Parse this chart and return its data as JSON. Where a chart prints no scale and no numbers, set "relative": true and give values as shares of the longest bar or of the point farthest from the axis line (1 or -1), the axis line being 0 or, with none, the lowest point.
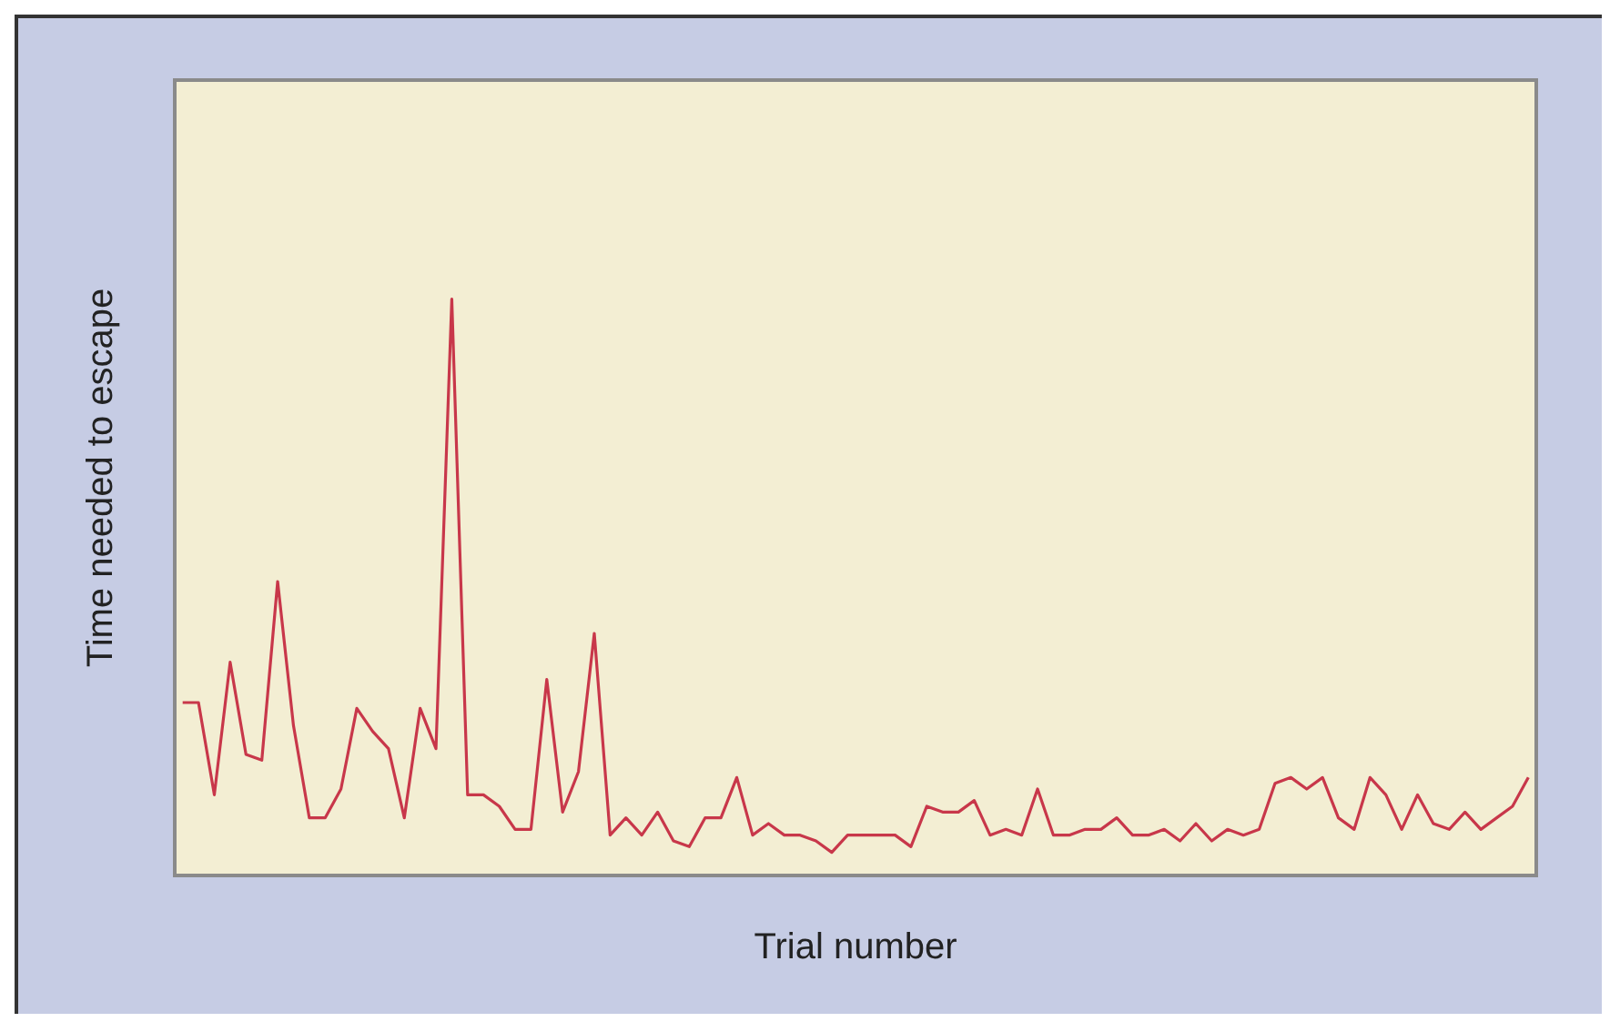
{
  "chart_data": {
    "type": "line",
    "relative": true,
    "xlabel": "Trial number",
    "ylabel": "Time needed to escape",
    "color": "#c8374a",
    "marker": "none",
    "grid": false,
    "legend": false,
    "categories": [
      null,
      null,
      null,
      null,
      null,
      null,
      null,
      null,
      null,
      null,
      null,
      null,
      null,
      null,
      null,
      null,
      null,
      null,
      null,
      null,
      null,
      null,
      null,
      null,
      null,
      null,
      null,
      null,
      null,
      null,
      null,
      null,
      null,
      null,
      null,
      null,
      null,
      null,
      null,
      null,
      null,
      null,
      null,
      null,
      null,
      null,
      null,
      null,
      null,
      null,
      null,
      null,
      null,
      null,
      null,
      null,
      null,
      null,
      null,
      null,
      null,
      null,
      null,
      null,
      null,
      null,
      null,
      null,
      null,
      null,
      null,
      null,
      null,
      null,
      null,
      null,
      null,
      null,
      null,
      null,
      null,
      null,
      null,
      null,
      null,
      null
    ],
    "values": [
      0.3,
      0.3,
      0.14,
      0.37,
      0.21,
      0.2,
      0.51,
      0.26,
      0.1,
      0.1,
      0.15,
      0.29,
      0.25,
      0.22,
      0.1,
      0.29,
      0.22,
      1,
      0.14,
      0.14,
      0.12,
      0.08,
      0.08,
      0.34,
      0.11,
      0.18,
      0.42,
      0.07,
      0.1,
      0.07,
      0.11,
      0.06,
      0.05,
      0.1,
      0.1,
      0.17,
      0.07,
      0.09,
      0.07,
      0.07,
      0.06,
      0.04,
      0.07,
      0.07,
      0.07,
      0.07,
      0.05,
      0.12,
      0.11,
      0.11,
      0.13,
      0.07,
      0.08,
      0.07,
      0.15,
      0.07,
      0.07,
      0.08,
      0.08,
      0.1,
      0.07,
      0.07,
      0.08,
      0.06,
      0.09,
      0.06,
      0.08,
      0.07,
      0.08,
      0.16,
      0.17,
      0.15,
      0.17,
      0.1,
      0.08,
      0.17,
      0.14,
      0.08,
      0.14,
      0.09,
      0.08,
      0.11,
      0.08,
      0.1,
      0.12,
      0.17
    ]
  }
}
